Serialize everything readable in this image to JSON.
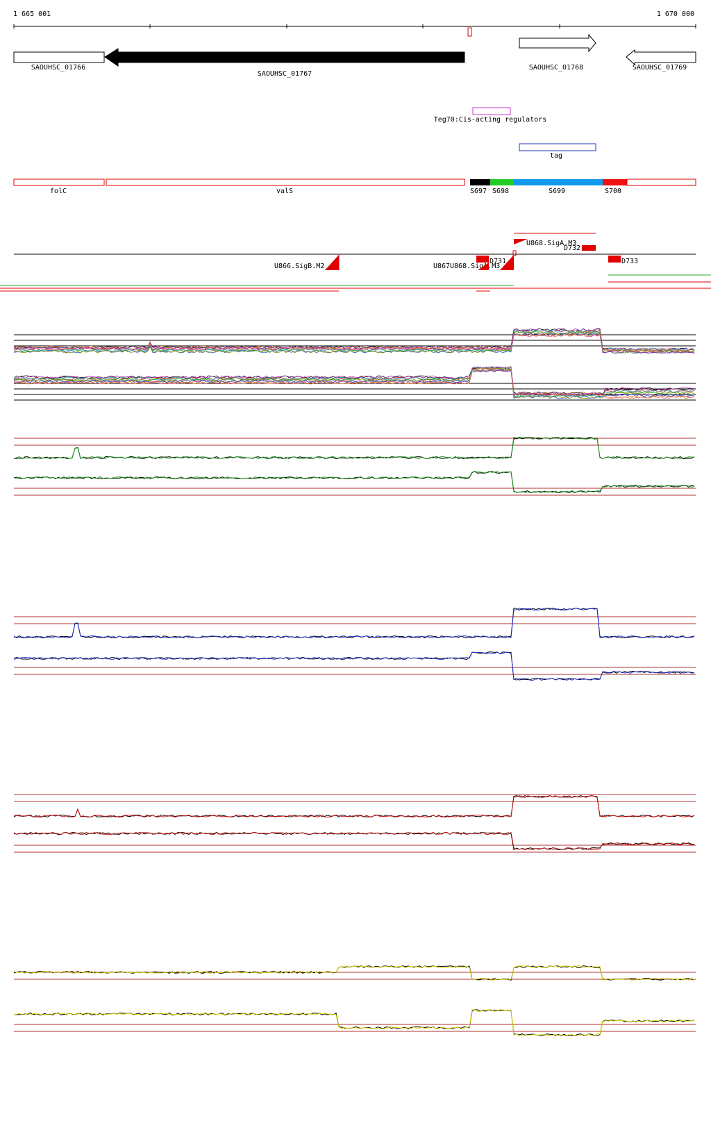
{
  "axis": {
    "start_label": "1 665 001",
    "end_label": "1 670 000"
  },
  "genes": [
    {
      "label": "SAOUHSC_01766",
      "strand": "-",
      "fill": "open"
    },
    {
      "label": "SAOUHSC_01767",
      "strand": "-",
      "fill": "solid"
    },
    {
      "label": "SAOUHSC_01768",
      "strand": "+",
      "fill": "open"
    },
    {
      "label": "SAOUHSC_01769",
      "strand": "-",
      "fill": "open"
    }
  ],
  "regulator": {
    "label": "Teg70:Cis-acting regulators",
    "color": "#cc33cc"
  },
  "tag": {
    "label": "tag",
    "color": "#2233bb"
  },
  "segments": [
    {
      "label": "folC",
      "color": "#e00000",
      "filled": false
    },
    {
      "label": "valS",
      "color": "#e00000",
      "filled": false
    },
    {
      "label": "S697",
      "color": "#000000",
      "filled": true
    },
    {
      "label": "S698",
      "color": "#22cc22",
      "filled": true
    },
    {
      "label": "S699",
      "color": "#1199ee",
      "filled": true
    },
    {
      "label": "S700",
      "color": "#ee1111",
      "filled": true
    },
    {
      "label": "",
      "color": "#e00000",
      "filled": false
    }
  ],
  "features": [
    {
      "label": "U868.SigA.M3"
    },
    {
      "label": "D732"
    },
    {
      "label": "U866.SigB.M2"
    },
    {
      "label": "U867"
    },
    {
      "label": "U868.SigA.M3"
    },
    {
      "label": "D731"
    },
    {
      "label": "D733"
    }
  ],
  "colors": {
    "axis": "#000000",
    "guide": "#b03030",
    "track_green": "#1a9a1a",
    "track_blue": "#1f2fcf",
    "track_red": "#cc1111",
    "track_yellow": "#d8d800"
  },
  "multi_colors": [
    "#000000",
    "#cc2222",
    "#22aa22",
    "#2255cc",
    "#dd8800",
    "#aa22aa",
    "#22aaaa",
    "#888800",
    "#7744aa",
    "#ee6688"
  ]
}
